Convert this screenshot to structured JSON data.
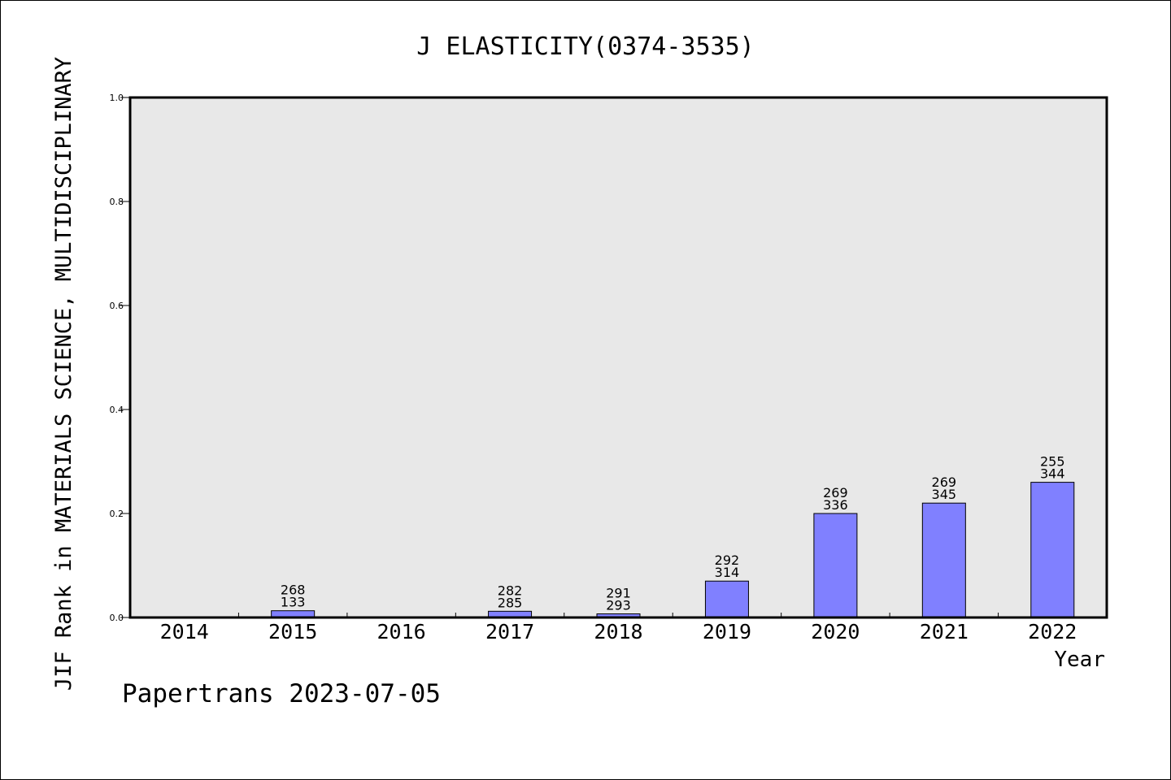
{
  "chart_data": {
    "type": "bar",
    "title": "J ELASTICITY(0374-3535)",
    "xlabel": "Year",
    "ylabel": "JIF Rank in MATERIALS SCIENCE, MULTIDISCIPLINARY",
    "ylim": [
      0,
      1.0
    ],
    "yticks": [
      "0.0",
      "0.2",
      "0.4",
      "0.6",
      "0.8",
      "1.0"
    ],
    "categories": [
      "2014",
      "2015",
      "2016",
      "2017",
      "2018",
      "2019",
      "2020",
      "2021",
      "2022"
    ],
    "values": [
      null,
      0.013,
      null,
      0.012,
      0.007,
      0.07,
      0.2,
      0.22,
      0.26
    ],
    "label_top": [
      "",
      "268",
      "",
      "282",
      "291",
      "292",
      "269",
      "269",
      "255"
    ],
    "label_bottom": [
      "",
      "133",
      "",
      "285",
      "293",
      "314",
      "336",
      "345",
      "344"
    ],
    "bar_color": "#8080ff",
    "plot_background": "#e8e8e8",
    "grid": false,
    "legend": "none"
  },
  "footer": {
    "credit": "Papertrans 2023-07-05"
  }
}
